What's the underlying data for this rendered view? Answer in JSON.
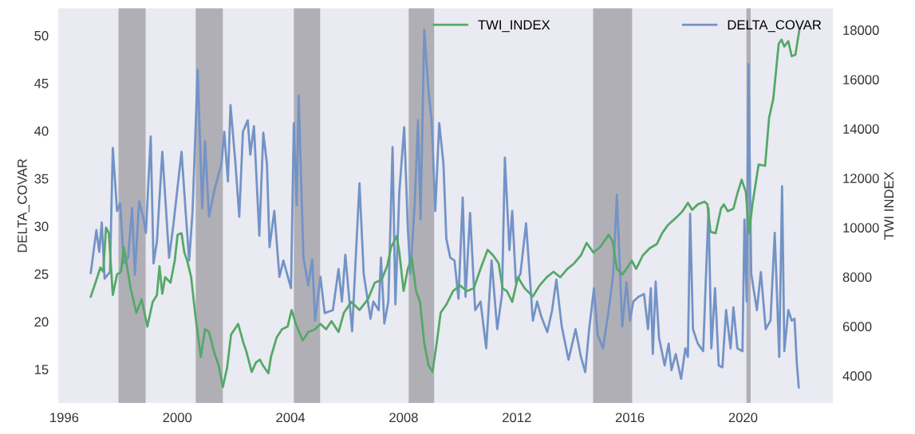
{
  "chart_data": {
    "type": "line",
    "xlabel": null,
    "ylabel": "DELTA_COVAR",
    "y2label": "TWI INDEX",
    "xlim": [
      1995.77,
      2023.2
    ],
    "xticks": [
      1996,
      2000,
      2004,
      2008,
      2012,
      2016,
      2020
    ],
    "ylim": [
      11.4,
      52.9
    ],
    "yticks": [
      15,
      20,
      25,
      30,
      35,
      40,
      45,
      50
    ],
    "y2lim": [
      2870,
      18900
    ],
    "y2ticks": [
      4000,
      6000,
      8000,
      10000,
      12000,
      14000,
      16000,
      18000
    ],
    "grid": false,
    "legend": "top right",
    "bands": [
      {
        "axis": "x",
        "from": 1997.92,
        "to": 1998.88,
        "color": "#b0afb6"
      },
      {
        "axis": "x",
        "from": 2000.65,
        "to": 2001.61,
        "color": "#b0afb6"
      },
      {
        "axis": "x",
        "from": 2004.12,
        "to": 2005.05,
        "color": "#b0afb6"
      },
      {
        "axis": "x",
        "from": 2008.18,
        "to": 2009.08,
        "color": "#b0afb6"
      },
      {
        "axis": "x",
        "from": 2014.7,
        "to": 2016.08,
        "color": "#b0afb6"
      },
      {
        "axis": "x",
        "from": 2020.12,
        "to": 2020.27,
        "color": "#b0afb6"
      }
    ],
    "series": [
      {
        "name": "DELTA_COVAR",
        "color": "#7393c6",
        "axis": "y",
        "x": [
          1996.94,
          1997.14,
          1997.24,
          1997.33,
          1997.43,
          1997.62,
          1997.72,
          1997.87,
          1997.98,
          1998.11,
          1998.26,
          1998.4,
          1998.5,
          1998.65,
          1998.79,
          1998.89,
          1999.06,
          1999.16,
          1999.28,
          1999.47,
          1999.71,
          1999.86,
          2000.15,
          2000.3,
          2000.42,
          2000.54,
          2000.72,
          2000.88,
          2000.98,
          2001.12,
          2001.32,
          2001.56,
          2001.66,
          2001.79,
          2001.88,
          2002.05,
          2002.19,
          2002.32,
          2002.49,
          2002.58,
          2002.71,
          2002.9,
          2003.04,
          2003.17,
          2003.26,
          2003.43,
          2003.61,
          2003.75,
          2004.02,
          2004.12,
          2004.22,
          2004.29,
          2004.46,
          2004.63,
          2004.77,
          2004.87,
          2005.06,
          2005.21,
          2005.5,
          2005.7,
          2005.82,
          2005.94,
          2006.18,
          2006.44,
          2006.59,
          2006.83,
          2006.93,
          2007.12,
          2007.2,
          2007.32,
          2007.46,
          2007.61,
          2007.71,
          2007.85,
          2008.02,
          2008.15,
          2008.24,
          2008.39,
          2008.51,
          2008.6,
          2008.73,
          2008.88,
          2008.99,
          2009.12,
          2009.26,
          2009.41,
          2009.51,
          2009.65,
          2009.8,
          2009.94,
          2010.09,
          2010.19,
          2010.35,
          2010.53,
          2010.72,
          2010.92,
          2011.11,
          2011.31,
          2011.48,
          2011.58,
          2011.74,
          2011.84,
          2011.97,
          2012.13,
          2012.33,
          2012.57,
          2012.72,
          2012.86,
          2013.08,
          2013.25,
          2013.4,
          2013.59,
          2013.83,
          2014.08,
          2014.27,
          2014.42,
          2014.56,
          2014.73,
          2014.86,
          2015.05,
          2015.25,
          2015.41,
          2015.54,
          2015.73,
          2015.88,
          2016.0,
          2016.12,
          2016.3,
          2016.5,
          2016.64,
          2016.74,
          2016.81,
          2016.91,
          2017.03,
          2017.23,
          2017.37,
          2017.47,
          2017.62,
          2017.81,
          2017.96,
          2018.05,
          2018.13,
          2018.23,
          2018.4,
          2018.59,
          2018.78,
          2018.88,
          2019.01,
          2019.14,
          2019.27,
          2019.4,
          2019.56,
          2019.66,
          2019.8,
          2019.98,
          2020.05,
          2020.13,
          2020.19,
          2020.29,
          2020.49,
          2020.63,
          2020.8,
          2020.97,
          2021.12,
          2021.28,
          2021.38,
          2021.46,
          2021.6,
          2021.72,
          2021.82,
          2021.9,
          2021.97
        ],
        "values": [
          25.1,
          29.6,
          27.3,
          30.4,
          24.5,
          25.2,
          38.2,
          31.6,
          32.4,
          26.1,
          26.7,
          31.9,
          24.9,
          32.6,
          31.0,
          29.3,
          39.4,
          26.1,
          28.4,
          37.8,
          26.7,
          30.1,
          37.8,
          31.3,
          26.4,
          31.6,
          46.4,
          31.9,
          38.9,
          31.0,
          33.9,
          36.5,
          39.9,
          34.7,
          42.7,
          36.8,
          31.0,
          39.9,
          41.1,
          37.5,
          40.5,
          29.0,
          39.8,
          36.5,
          27.8,
          31.6,
          24.7,
          26.4,
          23.5,
          40.8,
          32.2,
          43.7,
          26.7,
          23.8,
          26.5,
          20.1,
          24.7,
          20.9,
          21.2,
          25.5,
          22.1,
          27.0,
          19.0,
          34.5,
          25.0,
          20.3,
          22.1,
          21.2,
          26.7,
          19.8,
          22.1,
          38.3,
          21.8,
          33.6,
          40.4,
          29.8,
          25.0,
          32.2,
          41.1,
          30.7,
          50.6,
          44.2,
          41.1,
          31.6,
          40.8,
          36.5,
          28.7,
          26.7,
          26.4,
          22.4,
          33.0,
          22.6,
          31.4,
          21.2,
          22.1,
          17.2,
          26.4,
          19.2,
          22.9,
          37.2,
          27.5,
          31.6,
          24.1,
          25.0,
          30.3,
          20.1,
          22.1,
          20.6,
          18.9,
          21.2,
          24.4,
          19.5,
          16.0,
          19.2,
          16.3,
          14.7,
          19.2,
          23.5,
          18.6,
          17.2,
          21.2,
          25.0,
          33.3,
          19.5,
          24.1,
          20.1,
          22.1,
          22.6,
          22.9,
          19.2,
          23.5,
          16.6,
          24.2,
          18.3,
          15.4,
          17.7,
          14.9,
          16.6,
          14.0,
          17.2,
          16.3,
          31.3,
          19.2,
          17.7,
          16.9,
          31.9,
          17.2,
          23.5,
          15.4,
          15.2,
          21.2,
          17.2,
          21.5,
          17.2,
          16.9,
          30.7,
          22.1,
          47.0,
          25.0,
          21.2,
          25.2,
          19.2,
          20.1,
          29.3,
          16.3,
          34.2,
          16.9,
          21.2,
          20.1,
          20.3,
          15.7,
          13.1
        ]
      },
      {
        "name": "TWI_INDEX",
        "color": "#55a868",
        "axis": "y2",
        "x": [
          1996.94,
          1997.14,
          1997.28,
          1997.38,
          1997.48,
          1997.58,
          1997.72,
          1997.87,
          1998.01,
          1998.11,
          1998.35,
          1998.55,
          1998.74,
          1998.94,
          1999.13,
          1999.28,
          1999.37,
          1999.47,
          1999.57,
          1999.76,
          1999.91,
          2000.01,
          2000.15,
          2000.25,
          2000.35,
          2000.49,
          2000.64,
          2000.83,
          2000.98,
          2001.12,
          2001.32,
          2001.46,
          2001.61,
          2001.76,
          2001.9,
          2002.15,
          2002.34,
          2002.44,
          2002.63,
          2002.78,
          2002.92,
          2003.02,
          2003.22,
          2003.31,
          2003.51,
          2003.7,
          2003.9,
          2004.04,
          2004.19,
          2004.43,
          2004.63,
          2004.87,
          2005.06,
          2005.26,
          2005.45,
          2005.7,
          2005.89,
          2006.15,
          2006.44,
          2006.74,
          2006.98,
          2007.22,
          2007.42,
          2007.56,
          2007.76,
          2007.85,
          2008.0,
          2008.15,
          2008.29,
          2008.44,
          2008.58,
          2008.73,
          2008.88,
          2009.02,
          2009.17,
          2009.31,
          2009.51,
          2009.75,
          2009.99,
          2010.24,
          2010.48,
          2010.72,
          2010.97,
          2011.16,
          2011.36,
          2011.5,
          2011.65,
          2011.84,
          2012.04,
          2012.28,
          2012.57,
          2012.81,
          2013.06,
          2013.3,
          2013.54,
          2013.79,
          2014.03,
          2014.27,
          2014.47,
          2014.71,
          2014.95,
          2015.25,
          2015.39,
          2015.54,
          2015.73,
          2015.88,
          2016.07,
          2016.22,
          2016.46,
          2016.7,
          2016.95,
          2017.14,
          2017.34,
          2017.67,
          2017.86,
          2018.05,
          2018.2,
          2018.4,
          2018.64,
          2018.74,
          2018.85,
          2019.03,
          2019.22,
          2019.32,
          2019.46,
          2019.66,
          2019.8,
          2019.95,
          2020.1,
          2020.21,
          2020.34,
          2020.55,
          2020.78,
          2020.92,
          2021.07,
          2021.26,
          2021.36,
          2021.46,
          2021.6,
          2021.72,
          2021.85,
          2021.99
        ],
        "values": [
          7200,
          7880,
          8380,
          8210,
          10000,
          9770,
          7270,
          8100,
          8210,
          9210,
          7540,
          6540,
          7100,
          5990,
          6990,
          7270,
          8430,
          7320,
          7990,
          7770,
          8660,
          9710,
          9770,
          8990,
          8660,
          7990,
          6430,
          4760,
          5880,
          5770,
          4880,
          4430,
          3540,
          4320,
          5660,
          6100,
          5320,
          4990,
          4150,
          4540,
          4650,
          4430,
          4100,
          4760,
          5540,
          5880,
          5990,
          6660,
          6100,
          5430,
          5770,
          5880,
          6100,
          5880,
          6210,
          5770,
          6550,
          6990,
          6660,
          7100,
          7770,
          7880,
          8440,
          9210,
          9660,
          8990,
          7430,
          8330,
          8770,
          7430,
          6990,
          5320,
          4430,
          4150,
          5320,
          6550,
          6880,
          7430,
          7660,
          7430,
          7540,
          8330,
          9100,
          8880,
          8550,
          7540,
          7430,
          6990,
          7990,
          7540,
          7210,
          7660,
          7990,
          8210,
          7990,
          8330,
          8550,
          8880,
          9380,
          8990,
          9210,
          9710,
          9440,
          8330,
          8100,
          8330,
          8660,
          8330,
          8880,
          9160,
          9330,
          9770,
          10100,
          10440,
          10660,
          11000,
          10720,
          10940,
          11050,
          10940,
          9830,
          9770,
          10770,
          10940,
          10660,
          10770,
          11380,
          11940,
          11440,
          9770,
          11000,
          12550,
          12500,
          14440,
          15220,
          17440,
          17610,
          17330,
          17550,
          16940,
          17000,
          18000
        ]
      }
    ]
  }
}
